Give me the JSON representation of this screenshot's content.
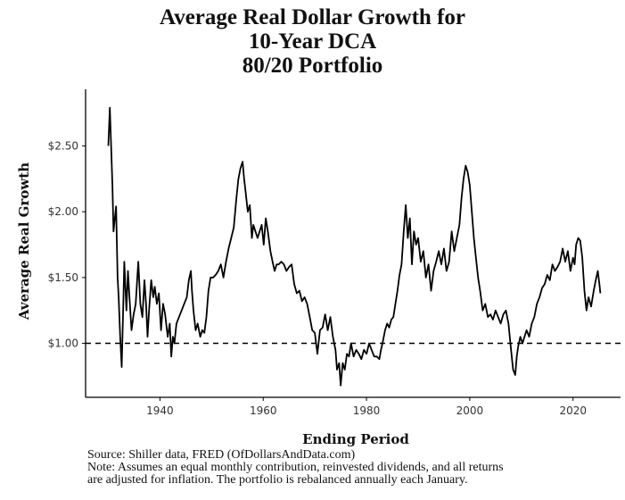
{
  "title_lines": [
    "Average Real Dollar Growth for",
    "10-Year DCA",
    "80/20 Portfolio"
  ],
  "footer": {
    "source": "Source:  Shiller data, FRED (OfDollarsAndData.com)",
    "note_line1": "Note: Assumes an equal monthly contribution, reinvested dividends, and all returns",
    "note_line2": "are adjusted for inflation. The portfolio is rebalanced annually each January."
  },
  "chart_data": {
    "type": "line",
    "title": "Average Real Dollar Growth for 10-Year DCA 80/20 Portfolio",
    "xlabel": "Ending Period",
    "ylabel": "Average Real Growth",
    "xlim": [
      1925.6,
      2029.2
    ],
    "ylim": [
      0.59,
      2.93
    ],
    "x_ticks": [
      1940,
      1960,
      1980,
      2000,
      2020
    ],
    "x_tick_labels": [
      "1940",
      "1960",
      "1980",
      "2000",
      "2020"
    ],
    "y_ticks": [
      1.0,
      1.5,
      2.0,
      2.5
    ],
    "y_tick_labels": [
      "$1.00",
      "$1.50",
      "$2.00",
      "$2.50"
    ],
    "reference_line": {
      "y": 1.0,
      "style": "dashed"
    },
    "grid": false,
    "line_color": "#000000",
    "series": [
      {
        "x": [
          1930.0,
          1930.3,
          1930.5,
          1930.8,
          1931.0,
          1931.5,
          1931.8,
          1932.0,
          1932.3,
          1932.6,
          1932.9,
          1933.1,
          1933.5,
          1933.8,
          1934.1,
          1934.5,
          1934.9,
          1935.3,
          1935.8,
          1936.2,
          1936.6,
          1937.0,
          1937.3,
          1937.6,
          1937.9,
          1938.3,
          1938.7,
          1939.0,
          1939.4,
          1939.8,
          1940.2,
          1940.6,
          1941.0,
          1941.5,
          1941.9,
          1942.2,
          1942.5,
          1942.8,
          1943.2,
          1943.7,
          1944.2,
          1944.7,
          1945.2,
          1945.6,
          1946.0,
          1946.2,
          1946.5,
          1946.9,
          1947.3,
          1947.8,
          1948.2,
          1948.6,
          1949.0,
          1949.4,
          1949.8,
          1950.3,
          1950.8,
          1951.3,
          1951.8,
          1952.3,
          1952.8,
          1953.3,
          1953.8,
          1954.3,
          1954.8,
          1955.2,
          1955.6,
          1956.0,
          1956.3,
          1956.6,
          1957.0,
          1957.4,
          1957.8,
          1958.1,
          1958.5,
          1958.9,
          1959.3,
          1959.7,
          1960.1,
          1960.5,
          1960.9,
          1961.4,
          1961.8,
          1962.2,
          1962.6,
          1963.0,
          1963.5,
          1964.0,
          1964.5,
          1965.0,
          1965.5,
          1966.0,
          1966.5,
          1967.0,
          1967.5,
          1968.0,
          1968.5,
          1969.0,
          1969.5,
          1970.0,
          1970.5,
          1971.0,
          1971.5,
          1972.0,
          1972.5,
          1973.0,
          1973.5,
          1974.0,
          1974.3,
          1974.7,
          1975.0,
          1975.4,
          1975.8,
          1976.2,
          1976.6,
          1977.0,
          1977.5,
          1978.0,
          1978.5,
          1979.0,
          1979.5,
          1980.0,
          1980.5,
          1981.0,
          1981.5,
          1982.0,
          1982.5,
          1982.8,
          1983.2,
          1983.6,
          1984.0,
          1984.4,
          1984.8,
          1985.2,
          1985.6,
          1986.0,
          1986.4,
          1986.8,
          1987.2,
          1987.6,
          1988.0,
          1988.4,
          1988.8,
          1989.2,
          1989.6,
          1990.0,
          1990.5,
          1991.0,
          1991.5,
          1992.0,
          1992.5,
          1993.0,
          1993.5,
          1994.0,
          1994.5,
          1995.0,
          1995.5,
          1996.0,
          1996.5,
          1997.0,
          1997.5,
          1998.0,
          1998.4,
          1998.8,
          1999.2,
          1999.6,
          2000.0,
          2000.4,
          2000.8,
          2001.2,
          2001.6,
          2002.0,
          2002.5,
          2003.0,
          2003.5,
          2004.0,
          2004.5,
          2005.0,
          2005.5,
          2006.0,
          2006.5,
          2007.0,
          2007.5,
          2008.0,
          2008.4,
          2008.8,
          2009.1,
          2009.4,
          2009.8,
          2010.2,
          2010.6,
          2011.0,
          2011.5,
          2012.0,
          2012.5,
          2013.0,
          2013.5,
          2014.0,
          2014.5,
          2015.0,
          2015.5,
          2016.0,
          2016.5,
          2017.0,
          2017.5,
          2018.0,
          2018.5,
          2019.0,
          2019.5,
          2020.0,
          2020.3,
          2020.6,
          2021.0,
          2021.4,
          2021.8,
          2022.2,
          2022.6,
          2023.0,
          2023.5,
          2024.0,
          2024.4,
          2024.8,
          2025.1,
          2025.3
        ],
        "y": [
          2.5,
          2.79,
          2.55,
          2.2,
          1.85,
          2.04,
          1.5,
          1.35,
          1.05,
          0.82,
          1.3,
          1.62,
          1.25,
          1.55,
          1.35,
          1.1,
          1.22,
          1.3,
          1.62,
          1.3,
          1.2,
          1.48,
          1.3,
          1.05,
          1.25,
          1.48,
          1.35,
          1.43,
          1.3,
          1.38,
          1.1,
          1.3,
          1.22,
          1.05,
          1.15,
          0.9,
          1.05,
          1.0,
          1.15,
          1.2,
          1.25,
          1.3,
          1.35,
          1.48,
          1.55,
          1.4,
          1.25,
          1.1,
          1.15,
          1.05,
          1.1,
          1.08,
          1.2,
          1.4,
          1.5,
          1.5,
          1.52,
          1.55,
          1.6,
          1.5,
          1.62,
          1.72,
          1.8,
          1.88,
          2.1,
          2.25,
          2.33,
          2.38,
          2.25,
          2.15,
          2.0,
          2.05,
          1.8,
          1.9,
          1.85,
          1.8,
          1.85,
          1.9,
          1.75,
          1.95,
          1.85,
          1.7,
          1.62,
          1.55,
          1.6,
          1.6,
          1.62,
          1.6,
          1.55,
          1.58,
          1.6,
          1.45,
          1.38,
          1.4,
          1.32,
          1.35,
          1.3,
          1.2,
          1.1,
          1.08,
          0.92,
          1.1,
          1.12,
          1.22,
          1.1,
          1.2,
          1.05,
          0.95,
          0.8,
          0.85,
          0.68,
          0.85,
          0.8,
          0.92,
          0.9,
          1.0,
          0.9,
          0.95,
          0.92,
          0.88,
          0.95,
          0.92,
          1.0,
          0.95,
          0.9,
          0.9,
          0.88,
          0.95,
          1.02,
          1.1,
          1.15,
          1.12,
          1.18,
          1.2,
          1.3,
          1.4,
          1.52,
          1.6,
          1.85,
          2.05,
          1.8,
          1.95,
          1.6,
          1.85,
          1.75,
          1.8,
          1.62,
          1.7,
          1.5,
          1.6,
          1.4,
          1.55,
          1.62,
          1.7,
          1.6,
          1.72,
          1.55,
          1.62,
          1.85,
          1.7,
          1.8,
          1.9,
          2.1,
          2.25,
          2.35,
          2.3,
          2.2,
          2.0,
          1.8,
          1.65,
          1.5,
          1.4,
          1.25,
          1.3,
          1.2,
          1.22,
          1.18,
          1.25,
          1.2,
          1.15,
          1.22,
          1.25,
          1.15,
          0.95,
          0.8,
          0.76,
          0.9,
          0.98,
          1.05,
          1.0,
          1.05,
          1.1,
          1.05,
          1.15,
          1.2,
          1.3,
          1.35,
          1.42,
          1.45,
          1.52,
          1.48,
          1.6,
          1.55,
          1.58,
          1.62,
          1.72,
          1.62,
          1.7,
          1.55,
          1.65,
          1.6,
          1.75,
          1.8,
          1.78,
          1.65,
          1.4,
          1.25,
          1.35,
          1.28,
          1.4,
          1.48,
          1.55,
          1.45,
          1.38
        ]
      }
    ]
  }
}
